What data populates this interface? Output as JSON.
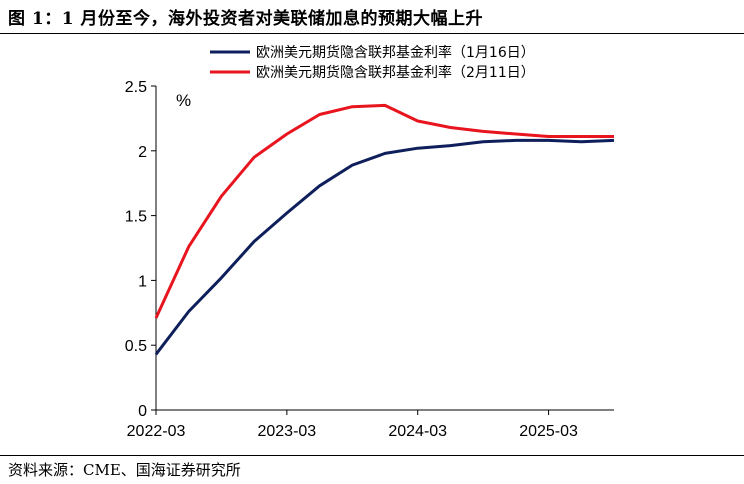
{
  "figure": {
    "title": "图 1：1 月份至今，海外投资者对美联储加息的预期大幅上升",
    "source": "资料来源：CME、国海证券研究所"
  },
  "chart_data": {
    "type": "line",
    "title": "",
    "xlabel": "",
    "ylabel": "%",
    "unit": "%",
    "ylim": [
      0,
      2.5
    ],
    "yticks": [
      "0",
      "0.5",
      "1",
      "1.5",
      "2",
      "2.5"
    ],
    "xticks": [
      "2022-03",
      "2023-03",
      "2024-03",
      "2025-03"
    ],
    "x": [
      "2022-03",
      "2022-06",
      "2022-09",
      "2022-12",
      "2023-03",
      "2023-06",
      "2023-09",
      "2023-12",
      "2024-03",
      "2024-06",
      "2024-09",
      "2024-12",
      "2025-03",
      "2025-06",
      "2025-09"
    ],
    "grid": false,
    "legend_position": "top",
    "series": [
      {
        "name": "欧洲美元期货隐含联邦基金利率（1月16日）",
        "color": "#0f1f5c",
        "values": [
          0.43,
          0.76,
          1.02,
          1.3,
          1.52,
          1.73,
          1.89,
          1.98,
          2.02,
          2.04,
          2.07,
          2.08,
          2.08,
          2.07,
          2.08
        ]
      },
      {
        "name": "欧洲美元期货隐含联邦基金利率（2月11日）",
        "color": "#e8141e",
        "values": [
          0.71,
          1.26,
          1.65,
          1.95,
          2.13,
          2.28,
          2.34,
          2.35,
          2.23,
          2.18,
          2.15,
          2.13,
          2.11,
          2.11,
          2.11
        ]
      }
    ]
  }
}
